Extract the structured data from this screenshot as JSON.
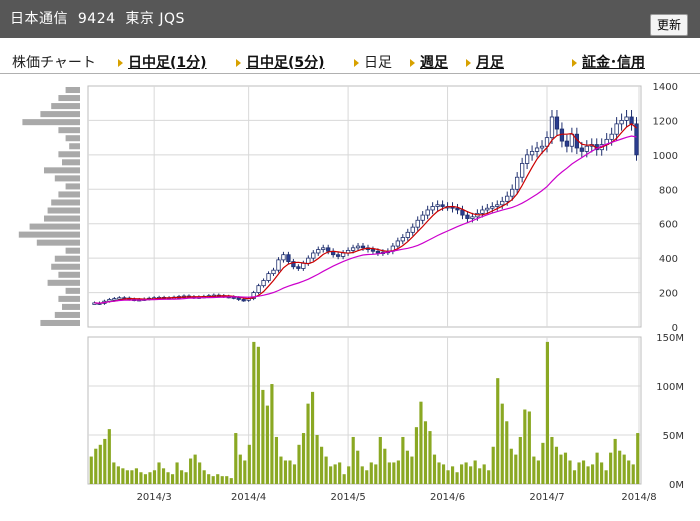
{
  "header": {
    "title": "日本通信  9424  東京 JQS",
    "refresh_label": "更新"
  },
  "tabs": [
    {
      "label": "株価チャート",
      "bold": false,
      "arrow": false
    },
    {
      "label": "日中足(1分)",
      "bold": true,
      "arrow": true
    },
    {
      "label": "日中足(5分)",
      "bold": true,
      "arrow": true
    },
    {
      "label": "日足",
      "bold": false,
      "arrow": true
    },
    {
      "label": "週足",
      "bold": true,
      "arrow": true
    },
    {
      "label": "月足",
      "bold": true,
      "arrow": true
    },
    {
      "label": "証金･信用",
      "bold": true,
      "arrow": true
    }
  ],
  "colors": {
    "up_candle": "#ffffff",
    "down_candle": "#2b3d8f",
    "ma_short": "#cc0000",
    "ma_long": "#cc00cc",
    "volume_bar": "#8aa823",
    "volume_profile": "#a9a9a9",
    "grid": "#d8d8d8"
  },
  "chart_data": [
    {
      "type": "candlestick",
      "title": "",
      "y_axis_side": "right",
      "ylim": [
        0,
        1400
      ],
      "y_ticks": [
        "0",
        "200",
        "400",
        "600",
        "800",
        "1000",
        "1200",
        "1400"
      ],
      "x_ticks": [
        "2014/3",
        "2014/4",
        "2014/5",
        "2014/6",
        "2014/7",
        "2014/8"
      ],
      "x_tick_index": [
        12,
        31,
        51,
        71,
        91,
        111
      ],
      "series": [
        {
          "name": "",
          "kind": "close_candles",
          "values": [
            140,
            137,
            150,
            160,
            165,
            170,
            168,
            162,
            158,
            160,
            163,
            167,
            170,
            172,
            170,
            168,
            173,
            177,
            180,
            176,
            172,
            175,
            178,
            182,
            185,
            182,
            178,
            175,
            170,
            160,
            155,
            165,
            200,
            240,
            270,
            310,
            330,
            390,
            420,
            380,
            350,
            340,
            370,
            400,
            430,
            450,
            460,
            440,
            420,
            410,
            430,
            445,
            460,
            470,
            460,
            450,
            440,
            430,
            435,
            440,
            470,
            500,
            520,
            550,
            580,
            620,
            650,
            680,
            700,
            710,
            700,
            700,
            690,
            680,
            650,
            630,
            640,
            660,
            680,
            690,
            700,
            710,
            730,
            760,
            800,
            870,
            950,
            1000,
            1020,
            1040,
            1050,
            1100,
            1220,
            1150,
            1080,
            1050,
            1120,
            1040,
            1020,
            1050,
            1060,
            1030,
            1060,
            1090,
            1120,
            1180,
            1200,
            1220,
            1180,
            1000
          ]
        },
        {
          "name": "",
          "kind": "moving_average_short",
          "values_approx": "25-day"
        },
        {
          "name": "",
          "kind": "moving_average_long",
          "values_approx": "75-day"
        }
      ],
      "volume_profile_left": [
        0.55,
        0.35,
        0.25,
        0.3,
        0.2,
        0.45,
        0.3,
        0.4,
        0.35,
        0.2,
        0.6,
        0.85,
        0.7,
        0.5,
        0.45,
        0.4,
        0.3,
        0.2,
        0.35,
        0.5,
        0.25,
        0.3,
        0.15,
        0.2,
        0.3,
        0.8,
        0.55,
        0.4,
        0.3,
        0.2
      ]
    },
    {
      "type": "bar",
      "title": "",
      "ylim": [
        0,
        150
      ],
      "y_ticks": [
        "0M",
        "50M",
        "100M",
        "150M"
      ],
      "values": [
        28,
        36,
        40,
        46,
        56,
        22,
        18,
        16,
        14,
        14,
        16,
        12,
        10,
        12,
        14,
        22,
        16,
        12,
        10,
        22,
        14,
        12,
        26,
        30,
        22,
        14,
        10,
        8,
        10,
        8,
        8,
        6,
        52,
        30,
        24,
        40,
        145,
        140,
        96,
        80,
        102,
        48,
        28,
        24,
        24,
        20,
        40,
        52,
        82,
        94,
        50,
        38,
        28,
        18,
        20,
        22,
        10,
        18,
        48,
        34,
        18,
        14,
        22,
        20,
        48,
        36,
        22,
        22,
        24,
        48,
        34,
        28,
        58,
        84,
        64,
        54,
        30,
        22,
        20,
        14,
        18,
        12,
        20,
        22,
        18,
        24,
        16,
        20,
        14,
        38,
        108,
        82,
        64,
        36,
        30,
        48,
        76,
        74,
        28,
        24,
        42,
        145,
        48,
        38,
        30,
        32,
        24,
        14,
        22,
        24,
        18,
        20,
        32,
        22,
        14,
        32,
        46,
        34,
        30,
        24,
        20,
        52
      ]
    }
  ]
}
